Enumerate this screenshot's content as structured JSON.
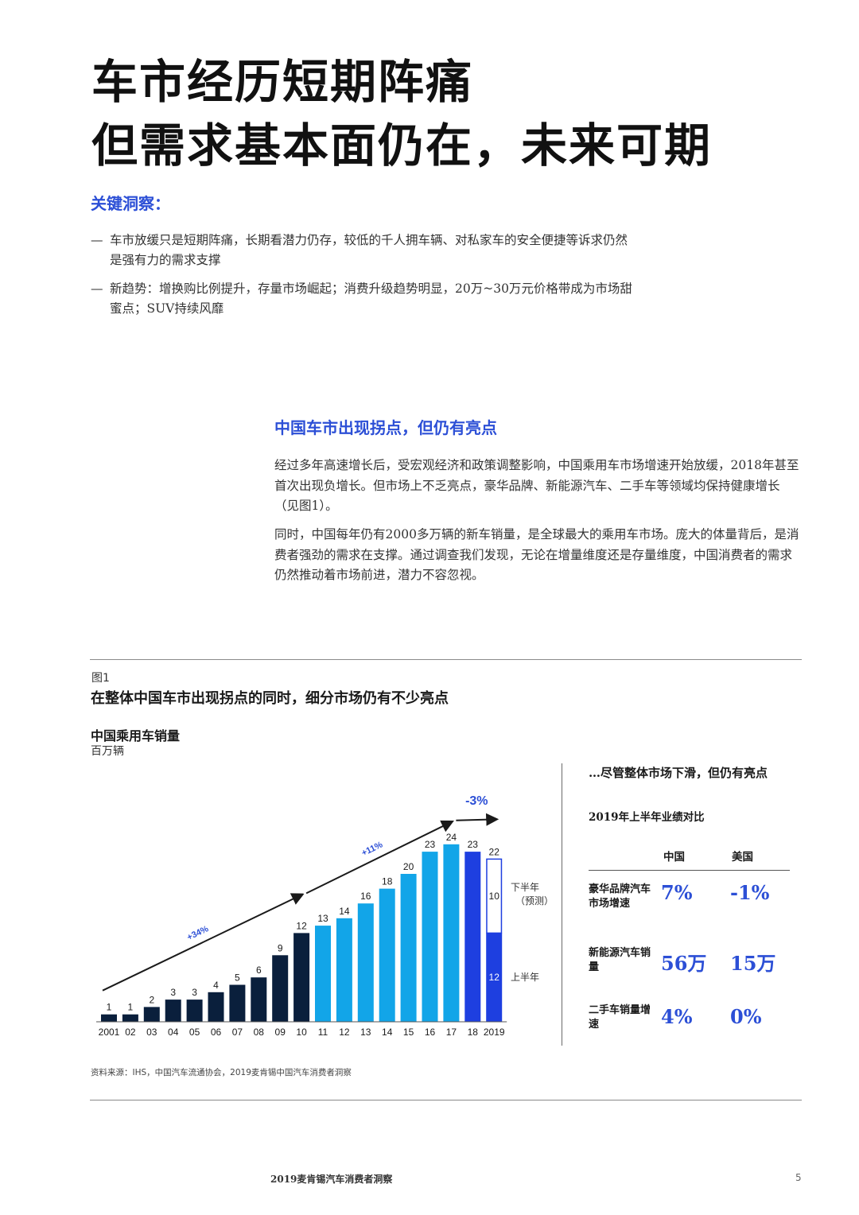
{
  "title": {
    "line1": "车市经历短期阵痛",
    "line2": "但需求基本面仍在，未来可期"
  },
  "insights": {
    "heading": "关键洞察：",
    "bullets": [
      "车市放缓只是短期阵痛，长期看潜力仍存，较低的千人拥车辆、对私家车的安全便捷等诉求仍然是强有力的需求支撑",
      "新趋势：增换购比例提升，存量市场崛起；消费升级趋势明显，20万~30万元价格带成为市场甜蜜点；SUV持续风靡"
    ],
    "dash": "—"
  },
  "section": {
    "title": "中国车市出现拐点，但仍有亮点",
    "para1": "经过多年高速增长后，受宏观经济和政策调整影响，中国乘用车市场增速开始放缓，2018年甚至首次出现负增长。但市场上不乏亮点，豪华品牌、新能源汽车、二手车等领域均保持健康增长（见图1）。",
    "para2": "同时，中国每年仍有2000多万辆的新车销量，是全球最大的乘用车市场。庞大的体量背后，是消费者强劲的需求在支撑。通过调查我们发现，无论在增量维度还是存量维度，中国消费者的需求仍然推动着市场前进，潜力不容忽视。"
  },
  "figure": {
    "label": "图1",
    "title": "在整体中国车市出现拐点的同时，细分市场仍有不少亮点",
    "source": "资料来源：IHS，中国汽车流通协会，2019麦肯锡中国汽车消费者洞察"
  },
  "chart_data": {
    "type": "bar",
    "title": "中国乘用车销量",
    "ylabel": "百万辆",
    "categories": [
      "2001",
      "02",
      "03",
      "04",
      "05",
      "06",
      "07",
      "08",
      "09",
      "10",
      "11",
      "12",
      "13",
      "14",
      "15",
      "16",
      "17",
      "18",
      "2019"
    ],
    "values": [
      1,
      1,
      2,
      3,
      3,
      4,
      5,
      6,
      9,
      12,
      13,
      14,
      16,
      18,
      20,
      23,
      24,
      23,
      22
    ],
    "stack_2019": {
      "first_half": 12,
      "second_half": 10,
      "first_half_label": "上半年",
      "second_half_label": "下半年（预测）"
    },
    "growth_labels": [
      "+34%",
      "+11%",
      "-3%"
    ],
    "colors": {
      "dark": "#0a1f3c",
      "light": "#12a5e8",
      "royal": "#1e3fe0",
      "accent": "#2c4fd6"
    }
  },
  "comparison": {
    "heading": "…尽管整体市场下滑，但仍有亮点",
    "subheading": "2019年上半年业绩对比",
    "col_china": "中国",
    "col_us": "美国",
    "rows": [
      {
        "label": "豪华品牌汽车市场增速",
        "china": "7%",
        "us": "-1%"
      },
      {
        "label": "新能源汽车销量",
        "china": "56万",
        "us": "15万"
      },
      {
        "label": "二手车销量增速",
        "china": "4%",
        "us": "0%"
      }
    ]
  },
  "footer": {
    "text": "2019麦肯锡汽车消费者洞察",
    "page": "5"
  }
}
